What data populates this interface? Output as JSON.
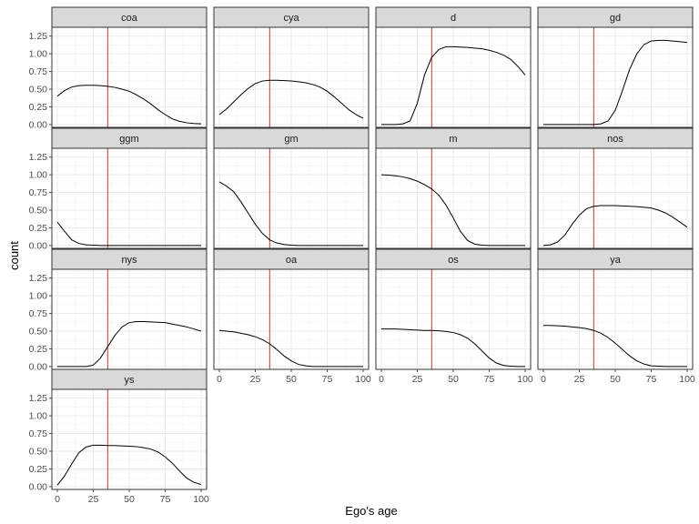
{
  "chart_data": {
    "type": "line",
    "facet_layout": "wrap, 4 columns",
    "xlabel": "Ego's age",
    "ylabel": "count",
    "xlim": [
      0,
      100
    ],
    "ylim": [
      0,
      1.25
    ],
    "x_ticks": [
      0,
      25,
      50,
      75,
      100
    ],
    "y_ticks": [
      0.0,
      0.25,
      0.5,
      0.75,
      1.0,
      1.25
    ],
    "x_tick_labels": [
      "0",
      "25",
      "50",
      "75",
      "100"
    ],
    "y_tick_labels": [
      "0.00",
      "0.25",
      "0.50",
      "0.75",
      "1.00",
      "1.25"
    ],
    "vertical_reference_line": {
      "x": 35,
      "color": "#c0392b"
    },
    "grid": true,
    "x": [
      0,
      5,
      10,
      15,
      20,
      25,
      30,
      35,
      40,
      45,
      50,
      55,
      60,
      65,
      70,
      75,
      80,
      85,
      90,
      95,
      100
    ],
    "panels": [
      {
        "name": "coa",
        "values": [
          0.4,
          0.48,
          0.53,
          0.55,
          0.555,
          0.555,
          0.55,
          0.54,
          0.525,
          0.5,
          0.47,
          0.42,
          0.36,
          0.29,
          0.21,
          0.14,
          0.08,
          0.045,
          0.025,
          0.015,
          0.01
        ]
      },
      {
        "name": "cya",
        "values": [
          0.14,
          0.22,
          0.32,
          0.42,
          0.51,
          0.58,
          0.615,
          0.625,
          0.625,
          0.62,
          0.615,
          0.605,
          0.59,
          0.565,
          0.53,
          0.47,
          0.39,
          0.3,
          0.21,
          0.14,
          0.09
        ]
      },
      {
        "name": "d",
        "values": [
          0.0,
          0.0,
          0.0,
          0.01,
          0.05,
          0.3,
          0.7,
          0.95,
          1.06,
          1.1,
          1.1,
          1.095,
          1.09,
          1.08,
          1.07,
          1.05,
          1.02,
          0.98,
          0.92,
          0.82,
          0.7
        ]
      },
      {
        "name": "gd",
        "values": [
          0.0,
          0.0,
          0.0,
          0.0,
          0.0,
          0.0,
          0.0,
          0.0,
          0.01,
          0.05,
          0.2,
          0.48,
          0.78,
          1.0,
          1.13,
          1.18,
          1.19,
          1.19,
          1.18,
          1.17,
          1.16
        ]
      },
      {
        "name": "ggm",
        "values": [
          0.33,
          0.2,
          0.08,
          0.03,
          0.01,
          0.005,
          0.0,
          0.0,
          0.0,
          0.0,
          0.0,
          0.0,
          0.0,
          0.0,
          0.0,
          0.0,
          0.0,
          0.0,
          0.0,
          0.0,
          0.0
        ]
      },
      {
        "name": "gm",
        "values": [
          0.9,
          0.84,
          0.76,
          0.62,
          0.46,
          0.3,
          0.17,
          0.08,
          0.035,
          0.015,
          0.005,
          0.0,
          0.0,
          0.0,
          0.0,
          0.0,
          0.0,
          0.0,
          0.0,
          0.0,
          0.0
        ]
      },
      {
        "name": "m",
        "values": [
          1.0,
          0.995,
          0.985,
          0.97,
          0.945,
          0.91,
          0.86,
          0.8,
          0.71,
          0.57,
          0.39,
          0.2,
          0.07,
          0.02,
          0.005,
          0.0,
          0.0,
          0.0,
          0.0,
          0.0,
          0.0
        ]
      },
      {
        "name": "nos",
        "values": [
          0.0,
          0.01,
          0.05,
          0.15,
          0.3,
          0.43,
          0.52,
          0.555,
          0.565,
          0.565,
          0.565,
          0.56,
          0.555,
          0.55,
          0.54,
          0.53,
          0.5,
          0.46,
          0.4,
          0.33,
          0.26
        ]
      },
      {
        "name": "nys",
        "values": [
          0.0,
          0.0,
          0.0,
          0.0,
          0.0,
          0.02,
          0.12,
          0.28,
          0.44,
          0.56,
          0.62,
          0.635,
          0.635,
          0.63,
          0.625,
          0.62,
          0.6,
          0.58,
          0.56,
          0.53,
          0.5
        ]
      },
      {
        "name": "oa",
        "values": [
          0.51,
          0.5,
          0.49,
          0.47,
          0.45,
          0.42,
          0.38,
          0.32,
          0.24,
          0.15,
          0.08,
          0.03,
          0.01,
          0.0,
          0.0,
          0.0,
          0.0,
          0.0,
          0.0,
          0.0,
          0.0
        ]
      },
      {
        "name": "os",
        "values": [
          0.53,
          0.53,
          0.53,
          0.525,
          0.52,
          0.515,
          0.51,
          0.51,
          0.505,
          0.495,
          0.48,
          0.45,
          0.4,
          0.32,
          0.22,
          0.12,
          0.05,
          0.015,
          0.005,
          0.0,
          0.0
        ]
      },
      {
        "name": "ya",
        "values": [
          0.58,
          0.58,
          0.575,
          0.57,
          0.56,
          0.55,
          0.535,
          0.51,
          0.47,
          0.41,
          0.33,
          0.24,
          0.15,
          0.08,
          0.035,
          0.01,
          0.005,
          0.0,
          0.0,
          0.0,
          0.0
        ]
      },
      {
        "name": "ys",
        "values": [
          0.02,
          0.15,
          0.32,
          0.48,
          0.56,
          0.585,
          0.585,
          0.58,
          0.58,
          0.575,
          0.57,
          0.565,
          0.55,
          0.53,
          0.49,
          0.42,
          0.33,
          0.22,
          0.12,
          0.06,
          0.03
        ]
      }
    ]
  }
}
